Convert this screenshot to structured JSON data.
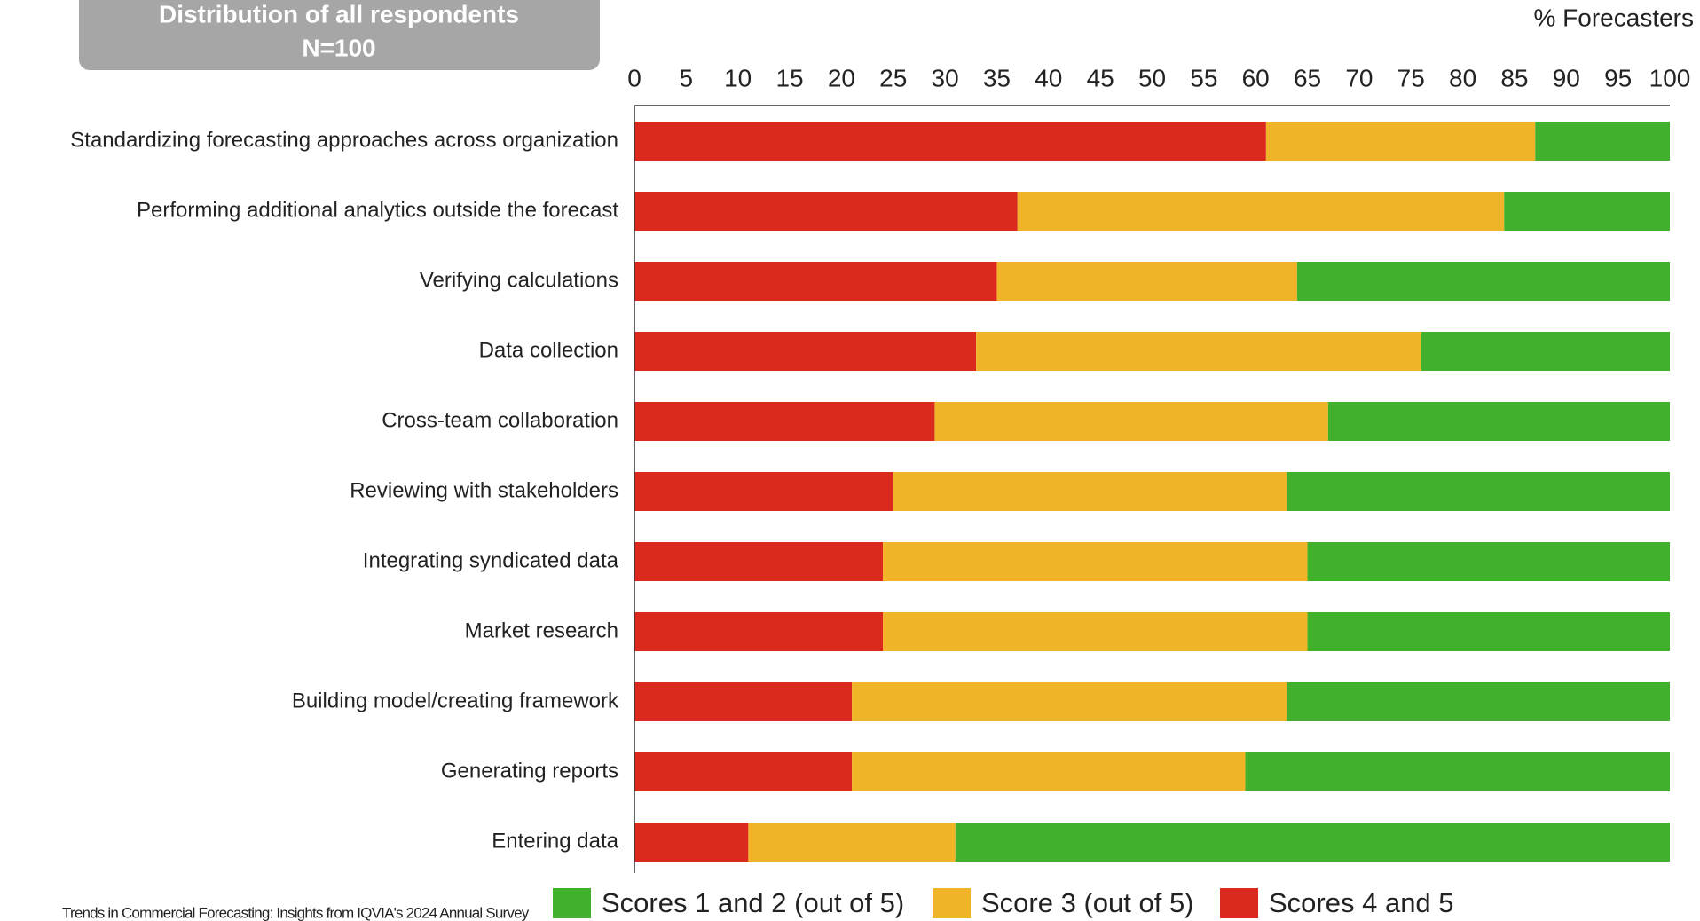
{
  "chart_data": {
    "type": "stacked_barh",
    "title": "Distribution of all respondents",
    "subtitle": "N=100",
    "xlabel": "% Forecasters",
    "source": "Trends in Commercial Forecasting: Insights from IQVIA's 2024 Annual Survey",
    "categories": [
      "Standardizing forecasting approaches across organization",
      "Performing additional analytics outside the forecast",
      "Verifying calculations",
      "Data collection",
      "Cross-team collaboration",
      "Reviewing with stakeholders",
      "Integrating syndicated data",
      "Market research",
      "Building model/creating framework",
      "Generating reports",
      "Entering data"
    ],
    "series": [
      {
        "name": "Scores 1 and 2 (out of 5)",
        "color": "#41b02c",
        "values": [
          13,
          16,
          36,
          24,
          33,
          37,
          35,
          35,
          37,
          41,
          69
        ]
      },
      {
        "name": "Score 3 (out of 5)",
        "color": "#f0b429",
        "values": [
          26,
          47,
          29,
          43,
          38,
          38,
          41,
          41,
          42,
          38,
          20
        ]
      },
      {
        "name": "Scores 4 and 5",
        "color": "#dc291e",
        "values": [
          61,
          37,
          35,
          33,
          29,
          25,
          24,
          24,
          21,
          21,
          11
        ]
      }
    ],
    "xlim": [
      0,
      100
    ],
    "xticks": [
      0,
      5,
      10,
      15,
      20,
      25,
      30,
      35,
      40,
      45,
      50,
      55,
      60,
      65,
      70,
      75,
      80,
      85,
      90,
      95,
      100
    ]
  }
}
